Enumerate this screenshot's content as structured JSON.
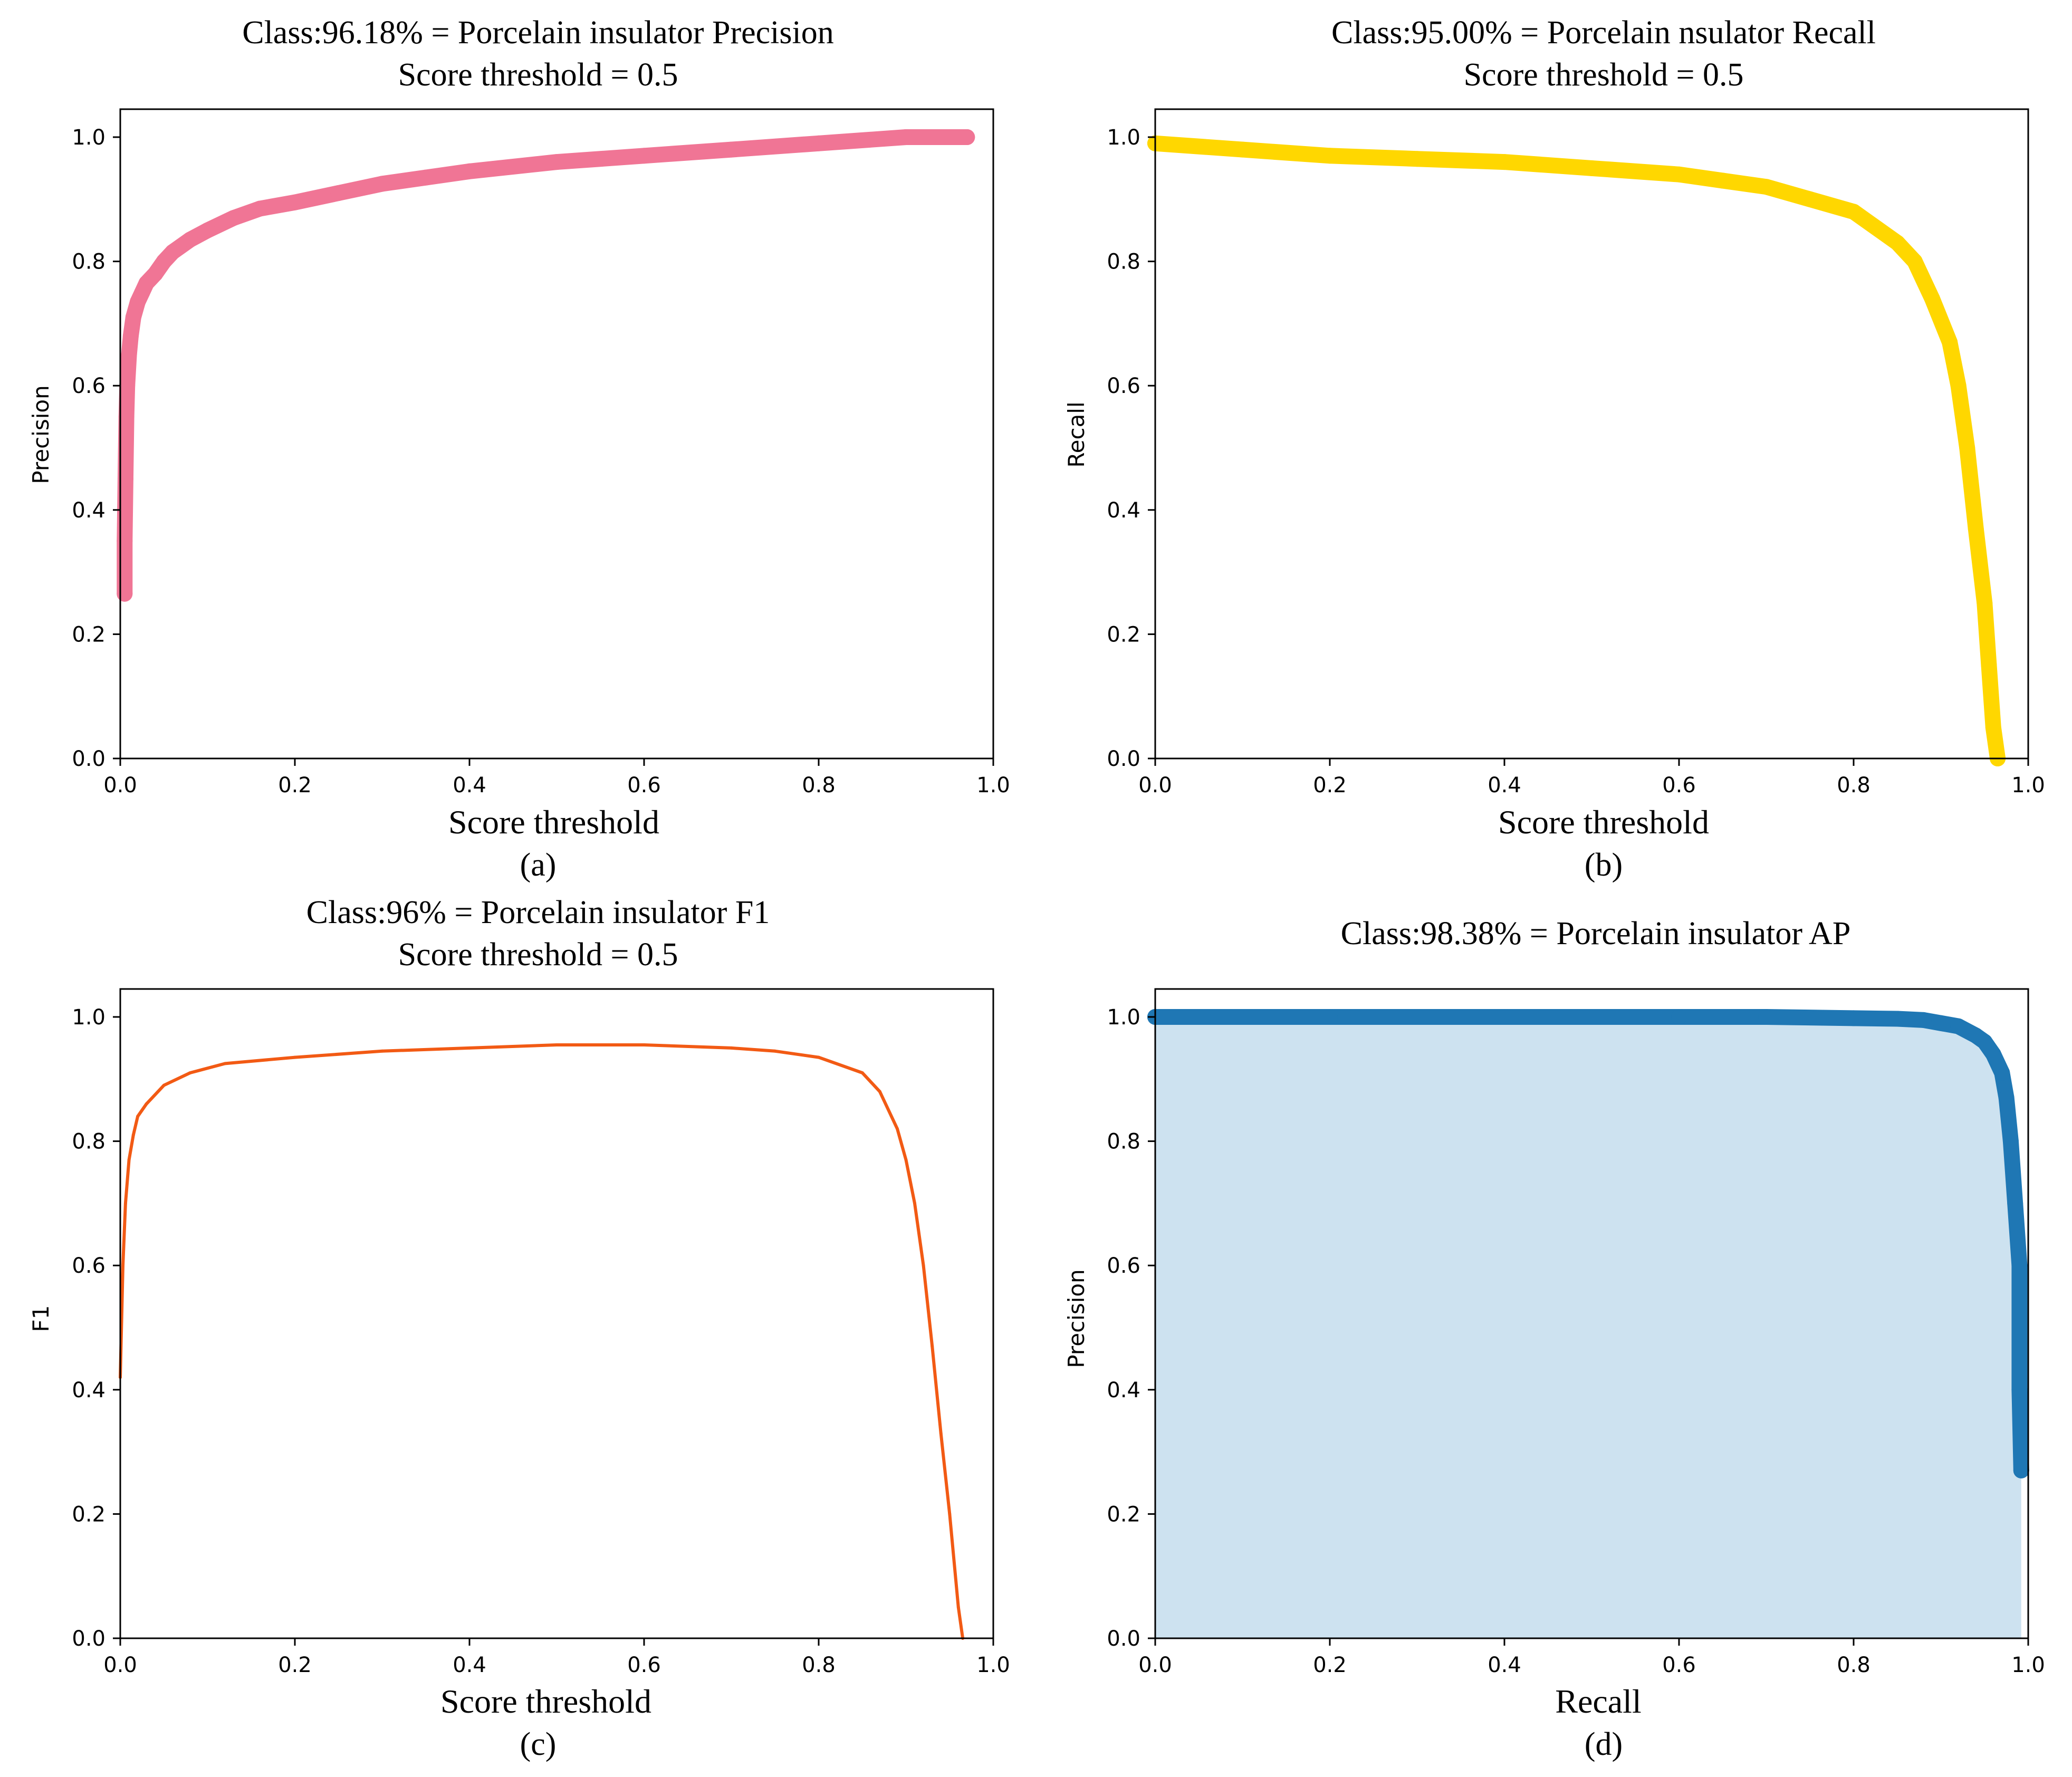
{
  "chart_data": [
    {
      "id": "a",
      "type": "scatter",
      "title_line1": "Class:96.18% = Porcelain insulator  Precision",
      "title_line2": "Score threshold = 0.5",
      "xlabel": "Score threshold",
      "ylabel": "Precision",
      "caption": "(a)",
      "xlim": [
        0,
        1
      ],
      "ylim": [
        0,
        1
      ],
      "xticks": [
        "0.0",
        "0.2",
        "0.4",
        "0.6",
        "0.8",
        "1.0"
      ],
      "yticks": [
        "0.0",
        "0.2",
        "0.4",
        "0.6",
        "0.8",
        "1.0"
      ],
      "color": "#f07595",
      "marker_style": "thick",
      "fill": false,
      "series": [
        {
          "name": "Precision",
          "x": [
            0.005,
            0.005,
            0.006,
            0.007,
            0.008,
            0.01,
            0.012,
            0.015,
            0.02,
            0.025,
            0.03,
            0.04,
            0.05,
            0.06,
            0.08,
            0.1,
            0.13,
            0.16,
            0.2,
            0.25,
            0.3,
            0.35,
            0.4,
            0.5,
            0.6,
            0.7,
            0.8,
            0.9,
            0.97
          ],
          "y": [
            0.265,
            0.35,
            0.45,
            0.55,
            0.6,
            0.65,
            0.68,
            0.71,
            0.735,
            0.75,
            0.765,
            0.78,
            0.8,
            0.815,
            0.835,
            0.85,
            0.87,
            0.885,
            0.895,
            0.91,
            0.925,
            0.935,
            0.945,
            0.96,
            0.97,
            0.98,
            0.99,
            1.0,
            1.0
          ]
        }
      ]
    },
    {
      "id": "b",
      "type": "scatter",
      "title_line1": "Class:95.00% = Porcelain nsulator  Recall",
      "title_line2": "Score threshold = 0.5",
      "xlabel": "Score threshold",
      "ylabel": "Recall",
      "caption": "(b)",
      "xlim": [
        0,
        1
      ],
      "ylim": [
        0,
        1
      ],
      "xticks": [
        "0.0",
        "0.2",
        "0.4",
        "0.6",
        "0.8",
        "1.0"
      ],
      "yticks": [
        "0.0",
        "0.2",
        "0.4",
        "0.6",
        "0.8",
        "1.0"
      ],
      "color": "#ffd700",
      "marker_style": "thick",
      "fill": false,
      "series": [
        {
          "name": "Recall",
          "x": [
            0.0,
            0.1,
            0.2,
            0.3,
            0.4,
            0.5,
            0.6,
            0.65,
            0.7,
            0.75,
            0.8,
            0.85,
            0.87,
            0.89,
            0.91,
            0.92,
            0.93,
            0.94,
            0.95,
            0.955,
            0.96,
            0.965
          ],
          "y": [
            0.99,
            0.98,
            0.97,
            0.965,
            0.96,
            0.95,
            0.94,
            0.93,
            0.92,
            0.9,
            0.88,
            0.83,
            0.8,
            0.74,
            0.67,
            0.6,
            0.5,
            0.37,
            0.25,
            0.15,
            0.05,
            0.0
          ]
        }
      ]
    },
    {
      "id": "c",
      "type": "line",
      "title_line1": "Class:96% = Porcelain insulator  F1",
      "title_line2": "Score threshold = 0.5",
      "xlabel": "Score threshold",
      "ylabel": "F1",
      "caption": "(c)",
      "xlim": [
        0,
        1
      ],
      "ylim": [
        0,
        1
      ],
      "xticks": [
        "0.0",
        "0.2",
        "0.4",
        "0.6",
        "0.8",
        "1.0"
      ],
      "yticks": [
        "0.0",
        "0.2",
        "0.4",
        "0.6",
        "0.8",
        "1.0"
      ],
      "color": "#f25a14",
      "marker_style": "thin",
      "fill": false,
      "series": [
        {
          "name": "F1",
          "x": [
            0.0,
            0.003,
            0.006,
            0.01,
            0.015,
            0.02,
            0.03,
            0.05,
            0.08,
            0.12,
            0.2,
            0.3,
            0.4,
            0.5,
            0.6,
            0.7,
            0.75,
            0.8,
            0.85,
            0.87,
            0.89,
            0.9,
            0.91,
            0.92,
            0.93,
            0.94,
            0.95,
            0.96,
            0.965
          ],
          "y": [
            0.42,
            0.6,
            0.7,
            0.77,
            0.81,
            0.84,
            0.86,
            0.89,
            0.91,
            0.925,
            0.935,
            0.945,
            0.95,
            0.955,
            0.955,
            0.95,
            0.945,
            0.935,
            0.91,
            0.88,
            0.82,
            0.77,
            0.7,
            0.6,
            0.47,
            0.33,
            0.2,
            0.05,
            0.0
          ]
        }
      ]
    },
    {
      "id": "d",
      "type": "area",
      "title_line1": "Class:98.38% = Porcelain insulator   AP",
      "title_line2": "",
      "xlabel": "Recall",
      "ylabel": "Precision",
      "caption": "(d)",
      "xlim": [
        0,
        1
      ],
      "ylim": [
        0,
        1
      ],
      "xticks": [
        "0.0",
        "0.2",
        "0.4",
        "0.6",
        "0.8",
        "1.0"
      ],
      "yticks": [
        "0.0",
        "0.2",
        "0.4",
        "0.6",
        "0.8",
        "1.0"
      ],
      "color": "#1f77b4",
      "fill_color": "#cde2f0",
      "marker_style": "thick",
      "fill": true,
      "series": [
        {
          "name": "Precision-Recall",
          "x": [
            0.0,
            0.2,
            0.4,
            0.6,
            0.7,
            0.8,
            0.85,
            0.88,
            0.9,
            0.92,
            0.94,
            0.95,
            0.96,
            0.97,
            0.975,
            0.98,
            0.985,
            0.99,
            0.99,
            0.992
          ],
          "y": [
            1.0,
            1.0,
            1.0,
            1.0,
            1.0,
            0.998,
            0.997,
            0.995,
            0.99,
            0.985,
            0.97,
            0.96,
            0.94,
            0.91,
            0.87,
            0.8,
            0.7,
            0.6,
            0.4,
            0.27
          ]
        }
      ]
    }
  ]
}
